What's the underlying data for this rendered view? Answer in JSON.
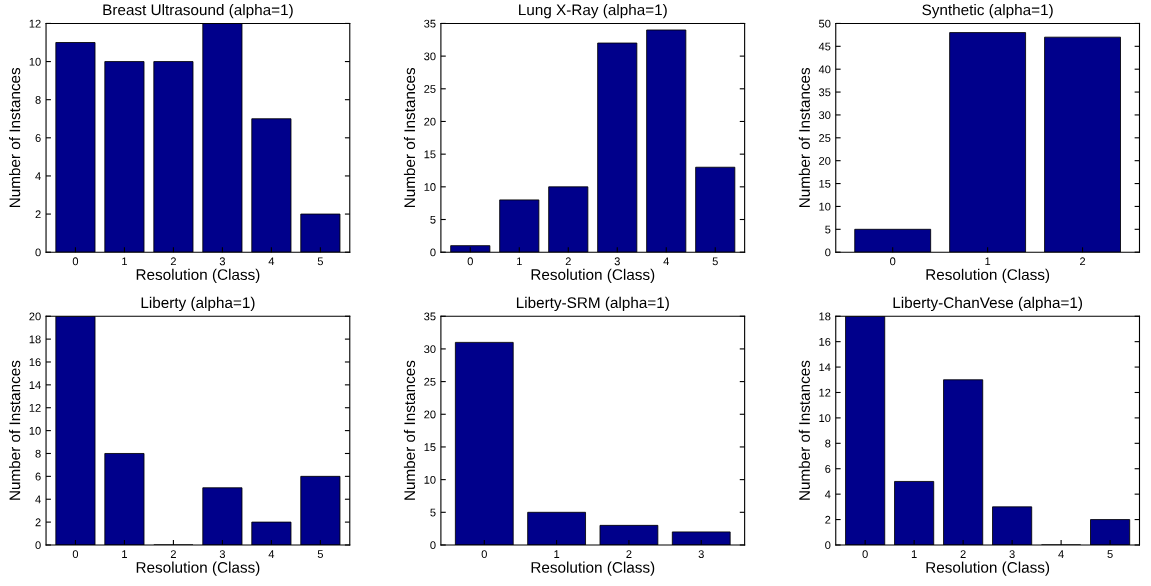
{
  "chart_data": [
    {
      "type": "bar",
      "title": "Breast Ultrasound (alpha=1)",
      "xlabel": "Resolution (Class)",
      "ylabel": "Number of Instances",
      "categories": [
        "0",
        "1",
        "2",
        "3",
        "4",
        "5"
      ],
      "values": [
        11,
        10,
        10,
        12,
        7,
        2
      ],
      "color": "#00008b",
      "ylim": [
        0,
        12
      ],
      "yticks": [
        0,
        2,
        4,
        6,
        8,
        10,
        12
      ],
      "grid": false
    },
    {
      "type": "bar",
      "title": "Lung X-Ray (alpha=1)",
      "xlabel": "Resolution (Class)",
      "ylabel": "Number of Instances",
      "categories": [
        "0",
        "1",
        "2",
        "3",
        "4",
        "5"
      ],
      "values": [
        1,
        8,
        10,
        32,
        34,
        13
      ],
      "color": "#00008b",
      "ylim": [
        0,
        35
      ],
      "yticks": [
        0,
        5,
        10,
        15,
        20,
        25,
        30,
        35
      ],
      "grid": false
    },
    {
      "type": "bar",
      "title": "Synthetic (alpha=1)",
      "xlabel": "Resolution (Class)",
      "ylabel": "Number of Instances",
      "categories": [
        "0",
        "1",
        "2"
      ],
      "values": [
        5,
        48,
        47
      ],
      "color": "#00008b",
      "ylim": [
        0,
        50
      ],
      "yticks": [
        0,
        5,
        10,
        15,
        20,
        25,
        30,
        35,
        40,
        45,
        50
      ],
      "grid": false
    },
    {
      "type": "bar",
      "title": "Liberty (alpha=1)",
      "xlabel": "Resolution (Class)",
      "ylabel": "Number of Instances",
      "categories": [
        "0",
        "1",
        "2",
        "3",
        "4",
        "5"
      ],
      "values": [
        20,
        8,
        0,
        5,
        2,
        6
      ],
      "color": "#00008b",
      "ylim": [
        0,
        20
      ],
      "yticks": [
        0,
        2,
        4,
        6,
        8,
        10,
        12,
        14,
        16,
        18,
        20
      ],
      "grid": false
    },
    {
      "type": "bar",
      "title": "Liberty-SRM (alpha=1)",
      "xlabel": "Resolution (Class)",
      "ylabel": "Number of Instances",
      "categories": [
        "0",
        "1",
        "2",
        "3"
      ],
      "values": [
        31,
        5,
        3,
        2
      ],
      "color": "#00008b",
      "ylim": [
        0,
        35
      ],
      "yticks": [
        0,
        5,
        10,
        15,
        20,
        25,
        30,
        35
      ],
      "grid": false
    },
    {
      "type": "bar",
      "title": "Liberty-ChanVese (alpha=1)",
      "xlabel": "Resolution (Class)",
      "ylabel": "Number of Instances",
      "categories": [
        "0",
        "1",
        "2",
        "3",
        "4",
        "5"
      ],
      "values": [
        18,
        5,
        13,
        3,
        0,
        2
      ],
      "color": "#00008b",
      "ylim": [
        0,
        18
      ],
      "yticks": [
        0,
        2,
        4,
        6,
        8,
        10,
        12,
        14,
        16,
        18
      ],
      "grid": false
    }
  ]
}
